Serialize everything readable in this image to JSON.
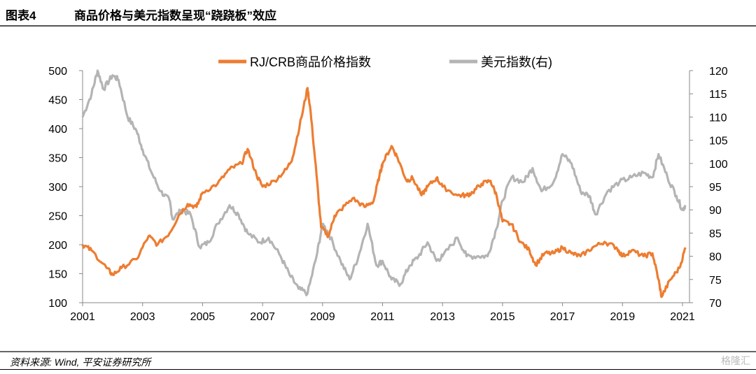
{
  "header": {
    "figure_no": "图表4",
    "title": "商品价格与美元指数呈现“跷跷板”效应"
  },
  "footer": {
    "source": "资料来源: Wind, 平安证券研究所",
    "watermark": "格隆汇"
  },
  "chart_data": {
    "type": "line",
    "title": "商品价格与美元指数呈现“跷跷板”效应",
    "xlim": [
      2001,
      2021.2
    ],
    "x_ticks": [
      "2001",
      "2003",
      "2005",
      "2007",
      "2009",
      "2011",
      "2013",
      "2015",
      "2017",
      "2019",
      "2021"
    ],
    "ylim_left": [
      100,
      500
    ],
    "y_ticks_left": [
      "500",
      "450",
      "400",
      "350",
      "300",
      "250",
      "200",
      "150",
      "100"
    ],
    "ylim_right": [
      70,
      120
    ],
    "y_ticks_right": [
      "120",
      "115",
      "110",
      "105",
      "100",
      "95",
      "90",
      "85",
      "80",
      "75",
      "70"
    ],
    "legend_position": "top",
    "series": [
      {
        "name": "RJ/CRB商品价格指数",
        "axis": "left",
        "color": "#ED7D31",
        "x": [
          2001.0,
          2001.3,
          2001.8,
          2002.0,
          2002.3,
          2002.8,
          2003.2,
          2003.5,
          2003.9,
          2004.2,
          2004.5,
          2004.8,
          2005.0,
          2005.5,
          2005.9,
          2006.3,
          2006.5,
          2006.8,
          2007.0,
          2007.4,
          2007.8,
          2008.0,
          2008.3,
          2008.5,
          2008.6,
          2008.8,
          2008.95,
          2009.2,
          2009.4,
          2009.6,
          2010.0,
          2010.4,
          2010.7,
          2010.9,
          2011.0,
          2011.3,
          2011.5,
          2011.8,
          2012.0,
          2012.3,
          2012.5,
          2012.8,
          2013.0,
          2013.5,
          2013.8,
          2014.0,
          2014.3,
          2014.6,
          2014.8,
          2015.0,
          2015.3,
          2015.6,
          2015.9,
          2016.1,
          2016.4,
          2016.7,
          2017.0,
          2017.3,
          2017.6,
          2018.0,
          2018.4,
          2018.8,
          2019.0,
          2019.3,
          2019.7,
          2020.0,
          2020.2,
          2020.3,
          2020.6,
          2020.9,
          2021.1
        ],
        "values": [
          200,
          190,
          160,
          148,
          160,
          175,
          215,
          200,
          220,
          250,
          270,
          265,
          290,
          305,
          330,
          340,
          365,
          320,
          300,
          310,
          330,
          350,
          420,
          470,
          430,
          320,
          230,
          215,
          250,
          260,
          280,
          265,
          275,
          320,
          340,
          370,
          350,
          310,
          315,
          285,
          300,
          315,
          300,
          285,
          285,
          290,
          305,
          310,
          285,
          240,
          235,
          205,
          190,
          165,
          185,
          185,
          195,
          185,
          180,
          195,
          205,
          195,
          180,
          190,
          180,
          185,
          140,
          110,
          140,
          160,
          195
        ]
      },
      {
        "name": "美元指数(右)",
        "axis": "right",
        "color": "#B4B4B4",
        "x": [
          2001.0,
          2001.3,
          2001.5,
          2001.7,
          2002.0,
          2002.2,
          2002.5,
          2002.8,
          2003.0,
          2003.3,
          2003.6,
          2003.9,
          2004.0,
          2004.3,
          2004.6,
          2004.9,
          2005.2,
          2005.5,
          2005.9,
          2006.2,
          2006.5,
          2006.9,
          2007.2,
          2007.6,
          2007.9,
          2008.2,
          2008.5,
          2008.8,
          2009.0,
          2009.2,
          2009.6,
          2009.9,
          2010.2,
          2010.5,
          2010.8,
          2011.0,
          2011.3,
          2011.6,
          2011.9,
          2012.2,
          2012.5,
          2012.8,
          2013.0,
          2013.5,
          2013.8,
          2014.2,
          2014.5,
          2014.8,
          2015.0,
          2015.3,
          2015.7,
          2016.0,
          2016.3,
          2016.7,
          2017.0,
          2017.3,
          2017.6,
          2017.9,
          2018.1,
          2018.5,
          2018.9,
          2019.3,
          2019.7,
          2020.0,
          2020.2,
          2020.5,
          2020.8,
          2021.0,
          2021.1
        ],
        "values": [
          110,
          115,
          120,
          116,
          119,
          118,
          110,
          107,
          103,
          98,
          94,
          92,
          88,
          90,
          89,
          82,
          83,
          87,
          91,
          89,
          85,
          83,
          84,
          80,
          76,
          73,
          72,
          80,
          87,
          85,
          79,
          75,
          80,
          87,
          78,
          79,
          75,
          74,
          78,
          80,
          83,
          79,
          80,
          84,
          80,
          80,
          80,
          86,
          92,
          97,
          96,
          99,
          94,
          96,
          102,
          100,
          94,
          93,
          89,
          94,
          96,
          97,
          98,
          97,
          102,
          97,
          93,
          90,
          91
        ]
      }
    ]
  }
}
